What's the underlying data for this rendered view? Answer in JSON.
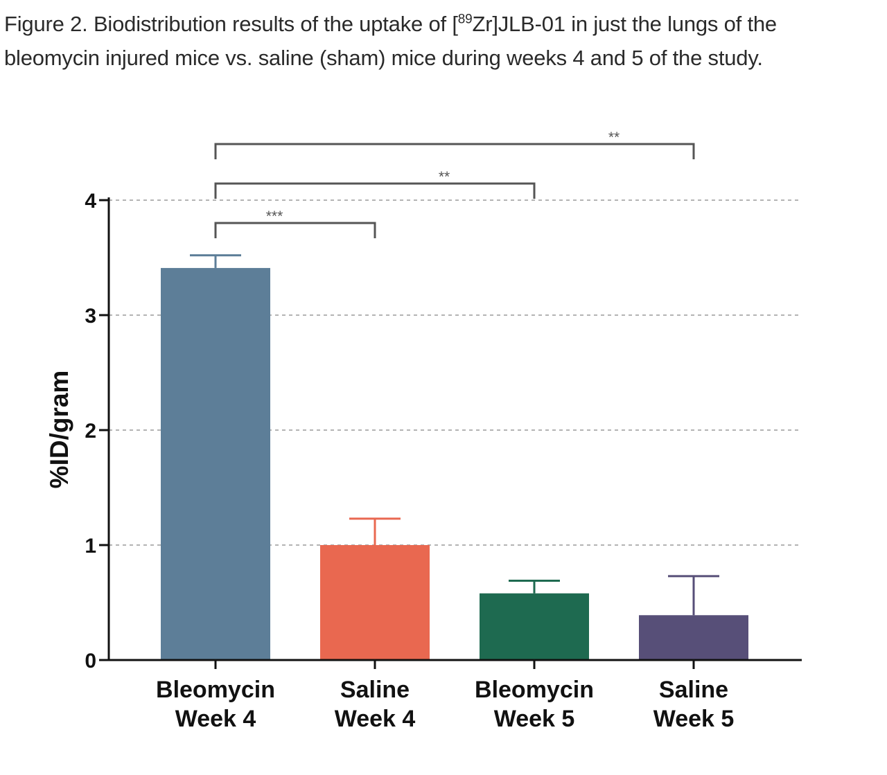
{
  "caption": {
    "prefix": "Figure 2. Biodistribution results of the uptake of [",
    "superscript": "89",
    "suffix": "Zr]JLB-01 in just the lungs of the bleomycin injured mice vs. saline (sham) mice during weeks 4 and 5 of the study."
  },
  "chart_data": {
    "type": "bar",
    "categories": [
      [
        "Bleomycin",
        "Week 4"
      ],
      [
        "Saline",
        "Week 4"
      ],
      [
        "Bleomycin",
        "Week 5"
      ],
      [
        "Saline",
        "Week 5"
      ]
    ],
    "values": [
      3.41,
      1.0,
      0.58,
      0.39
    ],
    "errors": [
      0.11,
      0.23,
      0.11,
      0.34
    ],
    "colors": [
      "#5d7e98",
      "#e96850",
      "#1e6a50",
      "#574f78"
    ],
    "ylabel": "%ID/gram",
    "ylim": [
      0,
      4
    ],
    "yticks": [
      0,
      1,
      2,
      3,
      4
    ],
    "grid": true,
    "significance": [
      {
        "from": 0,
        "to": 1,
        "label": "***"
      },
      {
        "from": 0,
        "to": 2,
        "label": "**"
      },
      {
        "from": 0,
        "to": 3,
        "label": "**"
      }
    ]
  }
}
